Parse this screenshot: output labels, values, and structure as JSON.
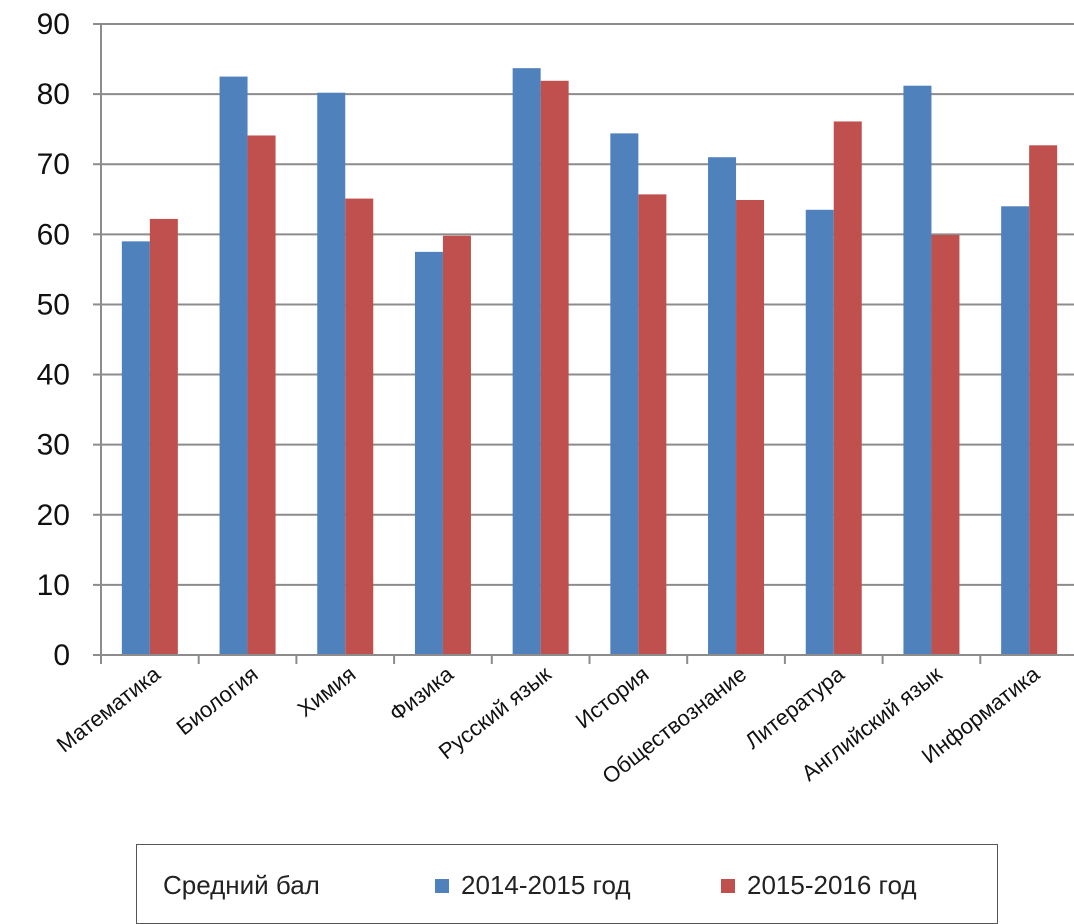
{
  "chart_data": {
    "type": "bar",
    "categories": [
      "Математика",
      "Биология",
      "Химия",
      "Физика",
      "Русский язык",
      "История",
      "Обществознание",
      "Литература",
      "Английский язык",
      "Информатика"
    ],
    "series": [
      {
        "name": "2014-2015 год",
        "color": "#4f81bd",
        "values": [
          59,
          82.5,
          80.2,
          57.5,
          83.7,
          74.4,
          71,
          63.5,
          81.2,
          64
        ]
      },
      {
        "name": "2015-2016 год",
        "color": "#c0504d",
        "values": [
          62.2,
          74.1,
          65.1,
          59.8,
          81.9,
          65.7,
          64.9,
          76.1,
          59.9,
          72.7
        ]
      }
    ],
    "ylim": [
      0,
      90
    ],
    "yticks": [
      0,
      10,
      20,
      30,
      40,
      50,
      60,
      70,
      80,
      90
    ],
    "grid": true,
    "legend": {
      "title": "Средний бал",
      "position": "bottom"
    },
    "title": "",
    "xlabel": "",
    "ylabel": ""
  }
}
